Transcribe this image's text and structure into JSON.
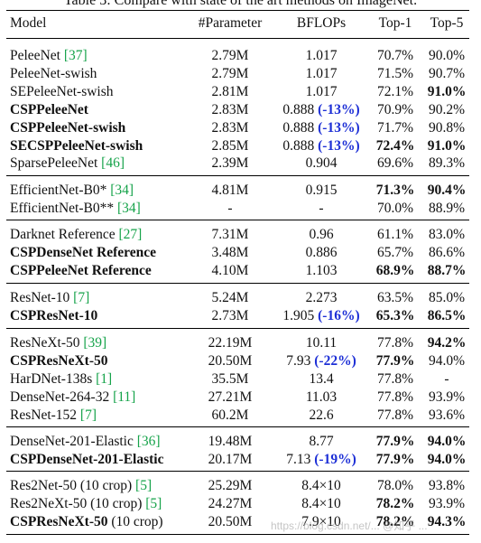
{
  "caption": "Table 3: Compare with state of the art methods on ImageNet.",
  "header": {
    "model": "Model",
    "parameter": "#Parameter",
    "bflops": "BFLOPs",
    "top1": "Top-1",
    "top5": "Top-5"
  },
  "groups": [
    [
      {
        "model": "PeleeNet",
        "ref": "[37]",
        "param": "2.79M",
        "bflops": "1.017",
        "top1": "70.7%",
        "top5": "90.0%"
      },
      {
        "model": "PeleeNet-swish",
        "param": "2.79M",
        "bflops": "1.017",
        "top1": "71.5%",
        "top5": "90.7%"
      },
      {
        "model": "SEPeleeNet-swish",
        "param": "2.81M",
        "bflops": "1.017",
        "top1": "72.1%",
        "top5": "91.0%",
        "b5": true
      },
      {
        "model": "CSPPeleeNet",
        "bm": true,
        "param": "2.83M",
        "bflops": "0.888",
        "delta": "(-13%)",
        "top1": "70.9%",
        "top5": "90.2%"
      },
      {
        "model": "CSPPeleeNet-swish",
        "bm": true,
        "param": "2.83M",
        "bflops": "0.888",
        "delta": "(-13%)",
        "top1": "71.7%",
        "top5": "90.8%"
      },
      {
        "model": "SECSPPeleeNet-swish",
        "bm": true,
        "param": "2.85M",
        "bflops": "0.888",
        "delta": "(-13%)",
        "top1": "72.4%",
        "top5": "91.0%",
        "b1": true,
        "b5": true
      },
      {
        "model": "SparsePeleeNet",
        "ref": "[46]",
        "param": "2.39M",
        "bflops": "0.904",
        "top1": "69.6%",
        "top5": "89.3%"
      }
    ],
    [
      {
        "model": "EfficientNet-B0*",
        "ref": "[34]",
        "param": "4.81M",
        "bflops": "0.915",
        "top1": "71.3%",
        "top5": "90.4%",
        "b1": true,
        "b5": true
      },
      {
        "model": "EfficientNet-B0**",
        "ref": "[34]",
        "param": "-",
        "bflops": "-",
        "top1": "70.0%",
        "top5": "88.9%"
      }
    ],
    [
      {
        "model": "Darknet Reference",
        "ref": "[27]",
        "param": "7.31M",
        "bflops": "0.96",
        "top1": "61.1%",
        "top5": "83.0%"
      },
      {
        "model": "CSPDenseNet Reference",
        "bm": true,
        "param": "3.48M",
        "bflops": "0.886",
        "top1": "65.7%",
        "top5": "86.6%"
      },
      {
        "model": "CSPPeleeNet Reference",
        "bm": true,
        "param": "4.10M",
        "bflops": "1.103",
        "top1": "68.9%",
        "top5": "88.7%",
        "b1": true,
        "b5": true
      }
    ],
    [
      {
        "model": "ResNet-10",
        "ref": "[7]",
        "param": "5.24M",
        "bflops": "2.273",
        "top1": "63.5%",
        "top5": "85.0%"
      },
      {
        "model": "CSPResNet-10",
        "bm": true,
        "param": "2.73M",
        "bflops": "1.905",
        "delta": "(-16%)",
        "top1": "65.3%",
        "top5": "86.5%",
        "b1": true,
        "b5": true
      }
    ],
    [
      {
        "model": "ResNeXt-50",
        "ref": "[39]",
        "param": "22.19M",
        "bflops": "10.11",
        "top1": "77.8%",
        "top5": "94.2%",
        "b5": true
      },
      {
        "model": "CSPResNeXt-50",
        "bm": true,
        "param": "20.50M",
        "bflops": "7.93",
        "delta": "(-22%)",
        "top1": "77.9%",
        "top5": "94.0%",
        "b1": true
      },
      {
        "model": "HarDNet-138s",
        "ref": "[1]",
        "param": "35.5M",
        "bflops": "13.4",
        "top1": "77.8%",
        "top5": "-"
      },
      {
        "model": "DenseNet-264-32",
        "ref": "[11]",
        "param": "27.21M",
        "bflops": "11.03",
        "top1": "77.8%",
        "top5": "93.9%"
      },
      {
        "model": "ResNet-152",
        "ref": "[7]",
        "param": "60.2M",
        "bflops": "22.6",
        "top1": "77.8%",
        "top5": "93.6%"
      }
    ],
    [
      {
        "model": "DenseNet-201-Elastic",
        "ref": "[36]",
        "param": "19.48M",
        "bflops": "8.77",
        "top1": "77.9%",
        "top5": "94.0%",
        "b1": true,
        "b5": true
      },
      {
        "model": "CSPDenseNet-201-Elastic",
        "bm": true,
        "param": "20.17M",
        "bflops": "7.13",
        "delta": "(-19%)",
        "top1": "77.9%",
        "top5": "94.0%",
        "b1": true,
        "b5": true
      }
    ],
    [
      {
        "model": "Res2Net-50 (10 crop)",
        "ref": "[5]",
        "param": "25.29M",
        "bflops": "8.4×10",
        "top1": "78.0%",
        "top5": "93.8%"
      },
      {
        "model": "Res2NeXt-50 (10 crop)",
        "ref": "[5]",
        "param": "24.27M",
        "bflops": "8.4×10",
        "top1": "78.2%",
        "top5": "93.9%",
        "b1": true
      },
      {
        "model": "CSPResNeXt-50",
        "bm": true,
        "suffix": " (10 crop)",
        "param": "20.50M",
        "bflops": "7.9×10",
        "top1": "78.2%",
        "top5": "94.3%",
        "b1": true,
        "b5": true
      }
    ]
  ],
  "watermark": "https://blog.csdn.net/...  @知乎 ..."
}
